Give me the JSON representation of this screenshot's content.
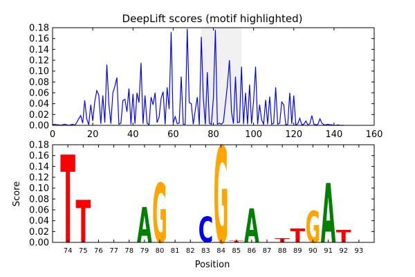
{
  "chart_data": [
    {
      "type": "line",
      "title": "DeepLift scores (motif highlighted)",
      "xlabel": "",
      "ylabel": "",
      "xlim": [
        0,
        160
      ],
      "ylim": [
        0,
        0.18
      ],
      "x_ticks": [
        "0",
        "20",
        "40",
        "60",
        "80",
        "100",
        "120",
        "140",
        "160"
      ],
      "y_ticks": [
        "0.00",
        "0.02",
        "0.04",
        "0.06",
        "0.08",
        "0.10",
        "0.12",
        "0.14",
        "0.16",
        "0.18"
      ],
      "highlight_region": [
        74,
        94
      ],
      "line_color": "#0000ff",
      "highlight_color": "#f0f0f0",
      "series": [
        {
          "x": [
            0,
            1,
            2,
            3,
            4,
            5,
            6,
            7,
            8,
            9,
            10,
            11,
            12,
            13,
            14,
            15,
            16,
            17,
            18,
            19,
            20,
            21,
            22,
            23,
            24,
            25,
            26,
            27,
            28,
            29,
            30,
            31,
            32,
            33,
            34,
            35,
            36,
            37,
            38,
            39,
            40,
            41,
            42,
            43,
            44,
            45,
            46,
            47,
            48,
            49,
            50,
            51,
            52,
            53,
            54,
            55,
            56,
            57,
            58,
            59,
            60,
            61,
            62,
            63,
            64,
            65,
            66,
            67,
            68,
            69,
            70,
            71,
            72,
            73,
            74,
            75,
            76,
            77,
            78,
            79,
            80,
            81,
            82,
            83,
            84,
            85,
            86,
            87,
            88,
            89,
            90,
            91,
            92,
            93,
            94,
            95,
            96,
            97,
            98,
            99,
            100,
            101,
            102,
            103,
            104,
            105,
            106,
            107,
            108,
            109,
            110,
            111,
            112,
            113,
            114,
            115,
            116,
            117,
            118,
            119,
            120,
            121,
            122,
            123,
            124,
            125,
            126,
            127,
            128,
            129,
            130,
            131,
            132,
            133,
            134,
            135,
            136,
            137,
            138,
            139,
            140,
            141,
            142,
            143,
            144,
            145
          ],
          "values": [
            0.001,
            0.002,
            0.001,
            0.001,
            0.0,
            0.001,
            0.002,
            0.001,
            0.0,
            0.001,
            0.002,
            0.0,
            0.005,
            0.012,
            0.018,
            0.004,
            0.046,
            0.012,
            0.001,
            0.038,
            0.008,
            0.044,
            0.064,
            0.056,
            0.003,
            0.055,
            0.005,
            0.112,
            0.04,
            0.003,
            0.06,
            0.072,
            0.088,
            0.002,
            0.004,
            0.046,
            0.048,
            0.025,
            0.068,
            0.002,
            0.058,
            0.003,
            0.06,
            0.042,
            0.115,
            0.003,
            0.055,
            0.004,
            0.001,
            0.052,
            0.038,
            0.06,
            0.005,
            0.015,
            0.05,
            0.062,
            0.002,
            0.07,
            0.03,
            0.172,
            0.004,
            0.016,
            0.003,
            0.004,
            0.09,
            0.002,
            0.002,
            0.178,
            0.042,
            0.04,
            0.002,
            0.028,
            0.052,
            0.001,
            0.163,
            0.05,
            0.002,
            0.098,
            0.004,
            0.002,
            0.05,
            0.176,
            0.002,
            0.004,
            0.002,
            0.006,
            0.04,
            0.075,
            0.12,
            0.025,
            0.003,
            0.09,
            0.005,
            0.006,
            0.108,
            0.002,
            0.06,
            0.002,
            0.075,
            0.003,
            0.045,
            0.108,
            0.002,
            0.038,
            0.01,
            0.002,
            0.047,
            0.002,
            0.053,
            0.002,
            0.004,
            0.07,
            0.002,
            0.004,
            0.043,
            0.038,
            0.001,
            0.002,
            0.06,
            0.003,
            0.055,
            0.001,
            0.003,
            0.013,
            0.001,
            0.002,
            0.008,
            0.001,
            0.003,
            0.018,
            0.002,
            0.001,
            0.002,
            0.012,
            0.004,
            0.001,
            0.001,
            0.002,
            0.001,
            0.001,
            0.0,
            0.0,
            0.001,
            0.0,
            0.0,
            0.0
          ]
        }
      ]
    },
    {
      "type": "sequence-logo",
      "title": "",
      "xlabel": "Position",
      "ylabel": "Score",
      "xlim": [
        73,
        94
      ],
      "ylim": [
        0,
        0.18
      ],
      "categories": [
        "74",
        "75",
        "76",
        "77",
        "78",
        "79",
        "80",
        "81",
        "82",
        "83",
        "84",
        "85",
        "86",
        "87",
        "88",
        "89",
        "90",
        "91",
        "92",
        "93"
      ],
      "y_ticks": [
        "0.00",
        "0.02",
        "0.04",
        "0.06",
        "0.08",
        "0.10",
        "0.12",
        "0.14",
        "0.16",
        "0.18"
      ],
      "base_colors": {
        "A": "#008000",
        "C": "#0000ff",
        "G": "#ffa500",
        "T": "#ff0000"
      },
      "letters": [
        {
          "pos": 74,
          "base": "T",
          "score": 0.162
        },
        {
          "pos": 75,
          "base": "T",
          "score": 0.078
        },
        {
          "pos": 79,
          "base": "A",
          "score": 0.065
        },
        {
          "pos": 80,
          "base": "G",
          "score": 0.11
        },
        {
          "pos": 83,
          "base": "C",
          "score": 0.047
        },
        {
          "pos": 84,
          "base": "G",
          "score": 0.178
        },
        {
          "pos": 85,
          "base": "T",
          "score": 0.003
        },
        {
          "pos": 86,
          "base": "A",
          "score": 0.062
        },
        {
          "pos": 88,
          "base": "T",
          "score": 0.007
        },
        {
          "pos": 89,
          "base": "T",
          "score": 0.026
        },
        {
          "pos": 90,
          "base": "G",
          "score": 0.058
        },
        {
          "pos": 91,
          "base": "A",
          "score": 0.11
        },
        {
          "pos": 92,
          "base": "T",
          "score": 0.023
        }
      ]
    }
  ]
}
